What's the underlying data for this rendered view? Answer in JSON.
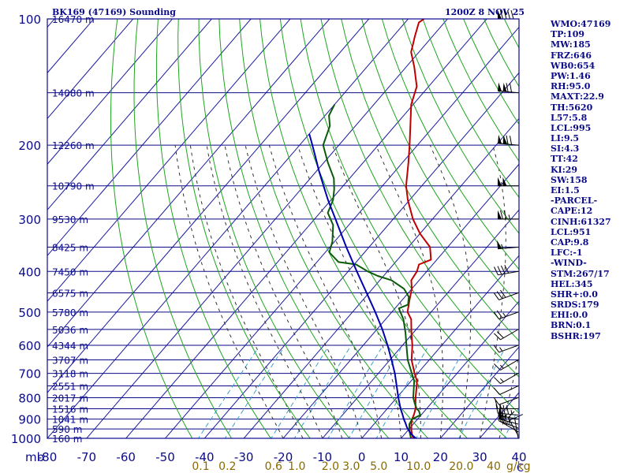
{
  "header": {
    "station_title": "BK169 (47169) Sounding",
    "valid_time": "1200Z  8 NOV 25"
  },
  "indices": [
    "WMO:47169",
    "TP:109",
    "MW:185",
    "FRZ:646",
    "WB0:654",
    "PW:1.46",
    "RH:95.0",
    "MAXT:22.9",
    "TH:5620",
    "L57:5.8",
    "LCL:995",
    "LI:9.5",
    "SI:4.3",
    "TT:42",
    "KI:29",
    "SW:158",
    "EI:1.5",
    "-PARCEL-",
    "CAPE:12",
    "CINH:61327",
    "LCL:951",
    "CAP:9.8",
    "LFC:-1",
    "-WIND-",
    "STM:267/17",
    "HEL:345",
    "SHR+:0.0",
    "SRDS:179",
    "EHI:0.0",
    "BRN:0.1",
    "BSHR:197"
  ],
  "colors": {
    "frame": "#0b0b8a",
    "isotherm": "#1a1aa0",
    "dry_adiabat": "#1fa51f",
    "moist_adiabat": "#333333",
    "mixing_ratio": "#3aa0d0",
    "temperature": "#c00000",
    "dewpoint": "#0a5a0a",
    "parcel": "#0000b0",
    "mixing_ratio_label": "#8a6a00",
    "barb": "#000000"
  },
  "chart_data": {
    "type": "line",
    "title": "BK169 (47169) Sounding",
    "subtitle": "1200Z  8 NOV 25",
    "x_axis": {
      "label": "",
      "unit_label": "C",
      "range": [
        -80,
        40
      ],
      "ticks": [
        -80,
        -70,
        -60,
        -50,
        -40,
        -30,
        -20,
        -10,
        0,
        10,
        20,
        30,
        40
      ],
      "tick_labels": [
        "-80",
        "-70",
        "-60",
        "-50",
        "-40",
        "-30",
        "-20",
        "-10",
        "0",
        "10",
        "20",
        "30",
        "40"
      ]
    },
    "y_axis": {
      "label": "mb",
      "scale": "log-pressure",
      "range": [
        100,
        1000
      ],
      "ticks": [
        100,
        200,
        300,
        400,
        500,
        600,
        700,
        800,
        900,
        1000
      ],
      "tick_labels": [
        "100",
        "200",
        "300",
        "400",
        "500",
        "600",
        "700",
        "800",
        "900",
        "1000"
      ]
    },
    "height_labels": [
      {
        "p": 100,
        "text": "16470 m"
      },
      {
        "p": 150,
        "text": "14080 m"
      },
      {
        "p": 200,
        "text": "12260 m"
      },
      {
        "p": 250,
        "text": "10790 m"
      },
      {
        "p": 300,
        "text": "9530 m"
      },
      {
        "p": 350,
        "text": "8425 m"
      },
      {
        "p": 400,
        "text": "7450 m"
      },
      {
        "p": 450,
        "text": "6575 m"
      },
      {
        "p": 500,
        "text": "5780 m"
      },
      {
        "p": 550,
        "text": "5036 m"
      },
      {
        "p": 600,
        "text": "4344 m"
      },
      {
        "p": 650,
        "text": "3707 m"
      },
      {
        "p": 700,
        "text": "3118 m"
      },
      {
        "p": 750,
        "text": "2551 m"
      },
      {
        "p": 800,
        "text": "2017 m"
      },
      {
        "p": 850,
        "text": "1516 m"
      },
      {
        "p": 900,
        "text": "1041 m"
      },
      {
        "p": 950,
        "text": "590 m"
      },
      {
        "p": 1000,
        "text": "160 m"
      }
    ],
    "mixing_ratio_lines": {
      "values": [
        0.1,
        0.2,
        0.6,
        1.0,
        2.0,
        3.0,
        5.0,
        10.0,
        20.0,
        40.0
      ],
      "labels": [
        "0.1",
        "0.2",
        "0.6",
        "1.0",
        "2.0",
        "3.0",
        "5.0",
        "10.0",
        "20.0",
        "40"
      ],
      "unit_label": "g/kg"
    },
    "dry_adiabats_theta_K": [
      230,
      240,
      250,
      260,
      270,
      280,
      290,
      300,
      310,
      320,
      330,
      340,
      350,
      360,
      370,
      380,
      390,
      400,
      410,
      420,
      430,
      440,
      450,
      460,
      470,
      480,
      490,
      500,
      510,
      520
    ],
    "moist_adiabats_thetaw_C": [
      -20,
      -15,
      -10,
      -5,
      0,
      5,
      10,
      15,
      20,
      25,
      30,
      35
    ],
    "series": [
      {
        "name": "temperature",
        "points": [
          [
            1005,
            13.5
          ],
          [
            990,
            12.5
          ],
          [
            960,
            11.0
          ],
          [
            925,
            9.5
          ],
          [
            900,
            8.6
          ],
          [
            875,
            8.0
          ],
          [
            850,
            7.2
          ],
          [
            825,
            6.0
          ],
          [
            800,
            4.8
          ],
          [
            750,
            2.5
          ],
          [
            730,
            1.5
          ],
          [
            700,
            -0.8
          ],
          [
            650,
            -4.5
          ],
          [
            600,
            -7.5
          ],
          [
            560,
            -10.5
          ],
          [
            520,
            -13.5
          ],
          [
            500,
            -16.0
          ],
          [
            470,
            -18.0
          ],
          [
            440,
            -20.0
          ],
          [
            420,
            -22.0
          ],
          [
            400,
            -22.5
          ],
          [
            385,
            -23.5
          ],
          [
            375,
            -21.5
          ],
          [
            350,
            -24.5
          ],
          [
            325,
            -30.0
          ],
          [
            300,
            -35.0
          ],
          [
            270,
            -40.5
          ],
          [
            250,
            -44.0
          ],
          [
            220,
            -48.5
          ],
          [
            200,
            -52.0
          ],
          [
            180,
            -56.0
          ],
          [
            160,
            -60.5
          ],
          [
            145,
            -63.0
          ],
          [
            130,
            -68.0
          ],
          [
            120,
            -72.0
          ],
          [
            110,
            -74.5
          ],
          [
            102,
            -76.5
          ],
          [
            100,
            -76.0
          ]
        ]
      },
      {
        "name": "dewpoint",
        "points": [
          [
            1005,
            12.8
          ],
          [
            990,
            12.0
          ],
          [
            960,
            10.5
          ],
          [
            925,
            9.0
          ],
          [
            900,
            8.6
          ],
          [
            880,
            9.8
          ],
          [
            860,
            8.5
          ],
          [
            850,
            7.5
          ],
          [
            825,
            5.8
          ],
          [
            800,
            4.2
          ],
          [
            750,
            1.8
          ],
          [
            730,
            0.8
          ],
          [
            700,
            -1.5
          ],
          [
            650,
            -5.5
          ],
          [
            600,
            -9.0
          ],
          [
            560,
            -12.0
          ],
          [
            520,
            -15.5
          ],
          [
            490,
            -19.0
          ],
          [
            480,
            -17.5
          ],
          [
            460,
            -19.0
          ],
          [
            440,
            -22.0
          ],
          [
            420,
            -27.0
          ],
          [
            410,
            -31.5
          ],
          [
            400,
            -35.0
          ],
          [
            385,
            -39.5
          ],
          [
            380,
            -44.5
          ],
          [
            360,
            -49.0
          ],
          [
            340,
            -50.5
          ],
          [
            310,
            -54.0
          ],
          [
            290,
            -58.0
          ],
          [
            270,
            -59.5
          ],
          [
            255,
            -61.5
          ],
          [
            240,
            -64.0
          ],
          [
            220,
            -69.0
          ],
          [
            200,
            -74.0
          ],
          [
            180,
            -76.5
          ],
          [
            170,
            -79.0
          ],
          [
            160,
            -80.0
          ]
        ]
      },
      {
        "name": "parcel",
        "points": [
          [
            1005,
            14.3
          ],
          [
            990,
            12.8
          ],
          [
            975,
            11.5
          ],
          [
            960,
            10.4
          ],
          [
            940,
            9.0
          ],
          [
            920,
            7.8
          ],
          [
            900,
            6.5
          ],
          [
            875,
            5.0
          ],
          [
            850,
            3.4
          ],
          [
            800,
            0.4
          ],
          [
            750,
            -2.6
          ],
          [
            700,
            -5.8
          ],
          [
            650,
            -9.6
          ],
          [
            600,
            -13.8
          ],
          [
            550,
            -18.6
          ],
          [
            500,
            -24.2
          ],
          [
            450,
            -30.6
          ],
          [
            400,
            -37.8
          ],
          [
            350,
            -45.8
          ],
          [
            300,
            -54.7
          ],
          [
            270,
            -60.8
          ],
          [
            250,
            -65.0
          ],
          [
            230,
            -69.5
          ],
          [
            210,
            -74.2
          ],
          [
            196,
            -77.8
          ],
          [
            188,
            -80.0
          ]
        ]
      }
    ],
    "wind_barbs": [
      {
        "p": 1000,
        "dir": 350,
        "kt": 10
      },
      {
        "p": 985,
        "dir": 330,
        "kt": 15
      },
      {
        "p": 965,
        "dir": 300,
        "kt": 25
      },
      {
        "p": 945,
        "dir": 290,
        "kt": 40
      },
      {
        "p": 925,
        "dir": 285,
        "kt": 55
      },
      {
        "p": 900,
        "dir": 280,
        "kt": 60
      },
      {
        "p": 880,
        "dir": 275,
        "kt": 45
      },
      {
        "p": 850,
        "dir": 270,
        "kt": 15
      },
      {
        "p": 800,
        "dir": 250,
        "kt": 10
      },
      {
        "p": 750,
        "dir": 245,
        "kt": 10
      },
      {
        "p": 700,
        "dir": 240,
        "kt": 15
      },
      {
        "p": 650,
        "dir": 240,
        "kt": 15
      },
      {
        "p": 600,
        "dir": 250,
        "kt": 15
      },
      {
        "p": 550,
        "dir": 240,
        "kt": 20
      },
      {
        "p": 500,
        "dir": 250,
        "kt": 25
      },
      {
        "p": 450,
        "dir": 250,
        "kt": 30
      },
      {
        "p": 400,
        "dir": 260,
        "kt": 40
      },
      {
        "p": 350,
        "dir": 265,
        "kt": 55
      },
      {
        "p": 300,
        "dir": 270,
        "kt": 75
      },
      {
        "p": 250,
        "dir": 270,
        "kt": 100
      },
      {
        "p": 200,
        "dir": 275,
        "kt": 120
      },
      {
        "p": 150,
        "dir": 275,
        "kt": 120
      },
      {
        "p": 100,
        "dir": 270,
        "kt": 90
      }
    ]
  }
}
